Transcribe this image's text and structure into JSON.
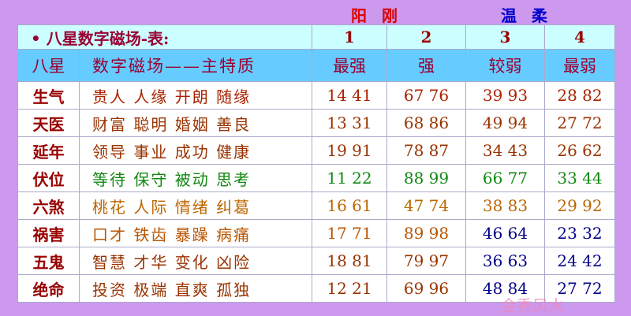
{
  "header": {
    "yang": "阳 刚",
    "wen": "温 柔"
  },
  "table": {
    "title": "• 八星数字磁场-表:",
    "column_numbers": [
      "1",
      "2",
      "3",
      "4"
    ],
    "headers": [
      "八星",
      "数字磁场——主特质",
      "最强",
      "强",
      "较弱",
      "最弱"
    ],
    "rows": [
      [
        "生气",
        "贵人 人缘 开朗 随缘",
        "14 41",
        "67 76",
        "39 93",
        "28 82"
      ],
      [
        "天医",
        "财富 聪明 婚姻 善良",
        "13 31",
        "68 86",
        "49 94",
        "27 72"
      ],
      [
        "延年",
        "领导 事业 成功 健康",
        "19 91",
        "78 87",
        "34 43",
        "26 62"
      ],
      [
        "伏位",
        "等待 保守 被动 思考",
        "11 22",
        "88 99",
        "66 77",
        "33 44"
      ],
      [
        "六煞",
        "桃花 人际 情绪 纠葛",
        "16 61",
        "47 74",
        "38 83",
        "29 92"
      ],
      [
        "祸害",
        "口才 铁齿 暴躁 病痛",
        "17 71",
        "89 98",
        "46 64",
        "23 32"
      ],
      [
        "五鬼",
        "智慧 才华 变化 凶险",
        "18 81",
        "79 97",
        "36 63",
        "24 42"
      ],
      [
        "绝命",
        "投资 极端 直爽 孤独",
        "12 21",
        "69 96",
        "48 84",
        "27 72"
      ]
    ]
  },
  "watermark": "金秀风水"
}
